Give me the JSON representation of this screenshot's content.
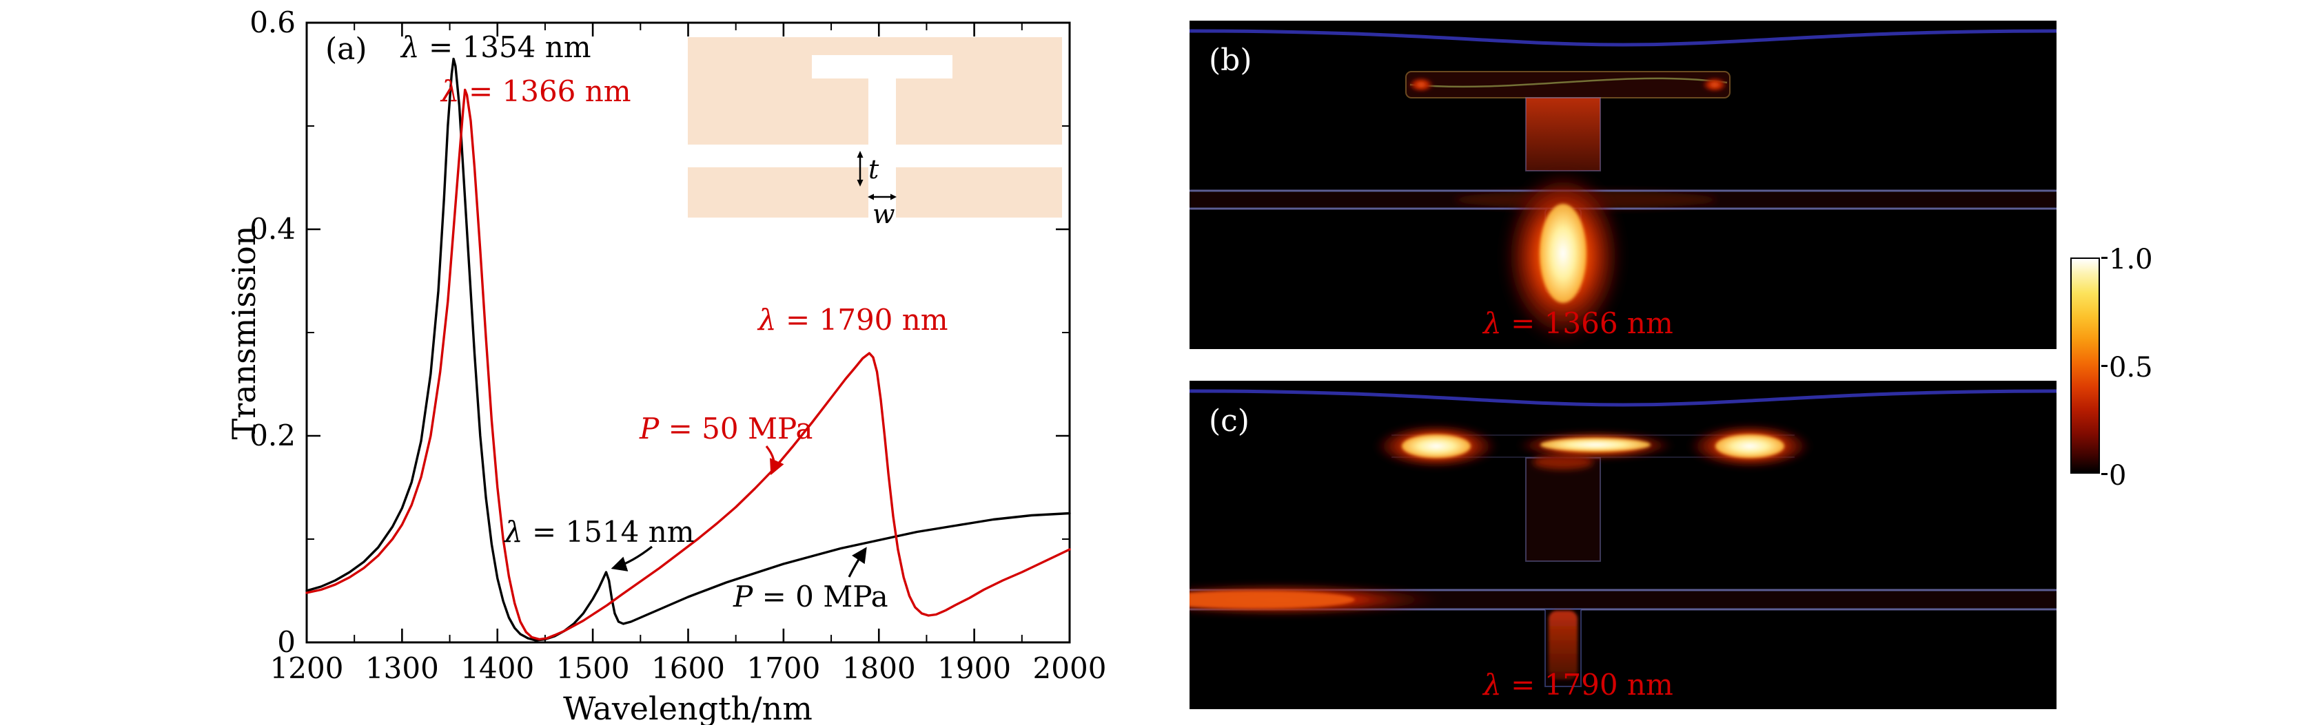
{
  "figure": {
    "panel_a": {
      "label": "(a)",
      "xlabel": "Wavelength/nm",
      "ylabel": "Transmission",
      "annotations": [
        {
          "var": "λ",
          "rest": " = 1354 nm",
          "color": "#000000"
        },
        {
          "var": "λ",
          "rest": " = 1366 nm",
          "color": "#d40000"
        },
        {
          "var": "λ",
          "rest": " = 1790 nm",
          "color": "#d40000"
        },
        {
          "var": "P",
          "rest": " = 50 MPa",
          "color": "#d40000"
        },
        {
          "var": "λ",
          "rest": " = 1514 nm",
          "color": "#000000"
        },
        {
          "var": "P",
          "rest": " = 0 MPa",
          "color": "#000000"
        }
      ],
      "inset": {
        "thickness_label": "t",
        "width_label": "w",
        "slab_color": "#f9e2cd"
      }
    },
    "panel_b": {
      "label": "(b)",
      "caption_var": "λ",
      "caption_rest": " = 1366 nm"
    },
    "panel_c": {
      "label": "(c)",
      "caption_var": "λ",
      "caption_rest": " = 1790 nm"
    },
    "colorbar": {
      "tick_labels": [
        "1.0",
        "0.5",
        "0"
      ],
      "range": [
        0,
        1
      ],
      "colormap_stops": [
        "#000000",
        "#8b0000",
        "#ff4500",
        "#ffa500",
        "#ffff00",
        "#ffffff"
      ]
    }
  },
  "chart_data": [
    {
      "type": "line",
      "title": "",
      "xlabel": "Wavelength/nm",
      "ylabel": "Transmission",
      "xlim": [
        1200,
        2000
      ],
      "ylim": [
        0,
        0.6
      ],
      "x_ticks": [
        1200,
        1300,
        1400,
        1500,
        1600,
        1700,
        1800,
        1900,
        2000
      ],
      "x_minor_step": 50,
      "y_ticks": [
        0,
        0.2,
        0.4,
        0.6
      ],
      "y_tick_labels": [
        "0",
        "0.2",
        "0.4",
        "0.6"
      ],
      "y_minor_step": 0.1,
      "grid": false,
      "legend": "none (labels annotated on curves)",
      "series": [
        {
          "name": "P = 0 MPa",
          "key": "p0",
          "color": "#000000",
          "points": [
            [
              1200,
              0.05
            ],
            [
              1215,
              0.054
            ],
            [
              1230,
              0.06
            ],
            [
              1245,
              0.068
            ],
            [
              1260,
              0.078
            ],
            [
              1275,
              0.092
            ],
            [
              1290,
              0.112
            ],
            [
              1300,
              0.13
            ],
            [
              1310,
              0.155
            ],
            [
              1320,
              0.195
            ],
            [
              1330,
              0.26
            ],
            [
              1338,
              0.34
            ],
            [
              1344,
              0.43
            ],
            [
              1348,
              0.5
            ],
            [
              1352,
              0.55
            ],
            [
              1354,
              0.565
            ],
            [
              1356,
              0.558
            ],
            [
              1360,
              0.52
            ],
            [
              1364,
              0.46
            ],
            [
              1370,
              0.37
            ],
            [
              1376,
              0.28
            ],
            [
              1382,
              0.2
            ],
            [
              1388,
              0.14
            ],
            [
              1394,
              0.095
            ],
            [
              1400,
              0.062
            ],
            [
              1406,
              0.04
            ],
            [
              1412,
              0.024
            ],
            [
              1418,
              0.014
            ],
            [
              1424,
              0.008
            ],
            [
              1432,
              0.004
            ],
            [
              1440,
              0.002
            ],
            [
              1450,
              0.003
            ],
            [
              1460,
              0.006
            ],
            [
              1470,
              0.011
            ],
            [
              1480,
              0.018
            ],
            [
              1490,
              0.028
            ],
            [
              1500,
              0.042
            ],
            [
              1506,
              0.052
            ],
            [
              1510,
              0.06
            ],
            [
              1514,
              0.068
            ],
            [
              1517,
              0.06
            ],
            [
              1520,
              0.042
            ],
            [
              1523,
              0.028
            ],
            [
              1527,
              0.02
            ],
            [
              1532,
              0.018
            ],
            [
              1540,
              0.02
            ],
            [
              1550,
              0.024
            ],
            [
              1565,
              0.03
            ],
            [
              1580,
              0.036
            ],
            [
              1600,
              0.044
            ],
            [
              1620,
              0.051
            ],
            [
              1640,
              0.058
            ],
            [
              1660,
              0.064
            ],
            [
              1680,
              0.07
            ],
            [
              1700,
              0.076
            ],
            [
              1720,
              0.081
            ],
            [
              1740,
              0.086
            ],
            [
              1760,
              0.091
            ],
            [
              1780,
              0.095
            ],
            [
              1800,
              0.099
            ],
            [
              1820,
              0.103
            ],
            [
              1840,
              0.107
            ],
            [
              1860,
              0.11
            ],
            [
              1880,
              0.113
            ],
            [
              1900,
              0.116
            ],
            [
              1920,
              0.119
            ],
            [
              1940,
              0.121
            ],
            [
              1960,
              0.123
            ],
            [
              1980,
              0.124
            ],
            [
              2000,
              0.125
            ]
          ]
        },
        {
          "name": "P = 50 MPa",
          "key": "p50",
          "color": "#d40000",
          "points": [
            [
              1200,
              0.048
            ],
            [
              1215,
              0.051
            ],
            [
              1230,
              0.056
            ],
            [
              1245,
              0.063
            ],
            [
              1260,
              0.072
            ],
            [
              1275,
              0.084
            ],
            [
              1290,
              0.1
            ],
            [
              1300,
              0.114
            ],
            [
              1310,
              0.133
            ],
            [
              1320,
              0.16
            ],
            [
              1330,
              0.2
            ],
            [
              1340,
              0.262
            ],
            [
              1348,
              0.33
            ],
            [
              1354,
              0.4
            ],
            [
              1360,
              0.47
            ],
            [
              1364,
              0.515
            ],
            [
              1366,
              0.535
            ],
            [
              1368,
              0.53
            ],
            [
              1372,
              0.505
            ],
            [
              1376,
              0.46
            ],
            [
              1382,
              0.38
            ],
            [
              1388,
              0.295
            ],
            [
              1394,
              0.215
            ],
            [
              1400,
              0.15
            ],
            [
              1406,
              0.1
            ],
            [
              1412,
              0.064
            ],
            [
              1418,
              0.038
            ],
            [
              1424,
              0.02
            ],
            [
              1430,
              0.01
            ],
            [
              1436,
              0.005
            ],
            [
              1444,
              0.003
            ],
            [
              1452,
              0.004
            ],
            [
              1460,
              0.007
            ],
            [
              1470,
              0.011
            ],
            [
              1480,
              0.016
            ],
            [
              1490,
              0.021
            ],
            [
              1500,
              0.027
            ],
            [
              1515,
              0.036
            ],
            [
              1530,
              0.046
            ],
            [
              1550,
              0.059
            ],
            [
              1570,
              0.072
            ],
            [
              1590,
              0.086
            ],
            [
              1610,
              0.1
            ],
            [
              1630,
              0.115
            ],
            [
              1650,
              0.131
            ],
            [
              1670,
              0.149
            ],
            [
              1690,
              0.168
            ],
            [
              1710,
              0.19
            ],
            [
              1730,
              0.213
            ],
            [
              1750,
              0.237
            ],
            [
              1765,
              0.255
            ],
            [
              1775,
              0.266
            ],
            [
              1783,
              0.275
            ],
            [
              1790,
              0.28
            ],
            [
              1794,
              0.276
            ],
            [
              1798,
              0.262
            ],
            [
              1802,
              0.235
            ],
            [
              1806,
              0.2
            ],
            [
              1810,
              0.163
            ],
            [
              1815,
              0.122
            ],
            [
              1820,
              0.09
            ],
            [
              1826,
              0.063
            ],
            [
              1832,
              0.045
            ],
            [
              1838,
              0.034
            ],
            [
              1845,
              0.028
            ],
            [
              1852,
              0.026
            ],
            [
              1860,
              0.027
            ],
            [
              1870,
              0.031
            ],
            [
              1880,
              0.036
            ],
            [
              1895,
              0.043
            ],
            [
              1910,
              0.051
            ],
            [
              1930,
              0.06
            ],
            [
              1950,
              0.068
            ],
            [
              1975,
              0.079
            ],
            [
              2000,
              0.09
            ]
          ]
        }
      ],
      "peak_annotations": [
        {
          "series": "P = 0 MPa",
          "wavelength_nm": 1354,
          "transmission": 0.565
        },
        {
          "series": "P = 50 MPa",
          "wavelength_nm": 1366,
          "transmission": 0.535
        },
        {
          "series": "P = 50 MPa",
          "wavelength_nm": 1790,
          "transmission": 0.28
        },
        {
          "series": "P = 0 MPa",
          "wavelength_nm": 1514,
          "transmission": 0.068
        }
      ]
    },
    {
      "type": "heatmap",
      "panel": "(b)",
      "caption": "λ = 1366 nm",
      "colorbar_range": [
        0,
        1
      ],
      "colorbar_ticks": [
        "1.0",
        "0.5",
        "0"
      ]
    },
    {
      "type": "heatmap",
      "panel": "(c)",
      "caption": "λ = 1790 nm",
      "colorbar_range": [
        0,
        1
      ],
      "colorbar_ticks": [
        "1.0",
        "0.5",
        "0"
      ]
    }
  ]
}
